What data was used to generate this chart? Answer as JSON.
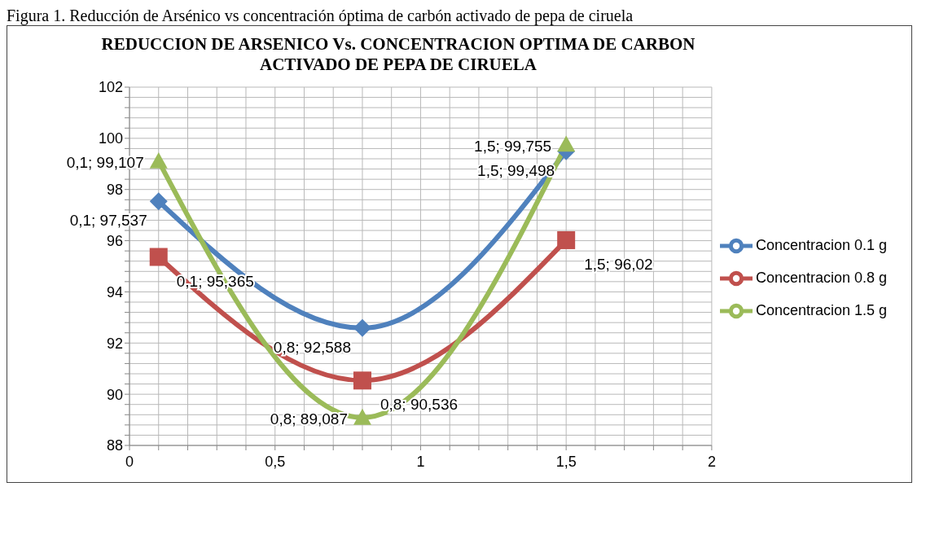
{
  "chart_data": {
    "type": "line",
    "title": "REDUCCION DE ARSENICO Vs. CONCENTRACION OPTIMA DE CARBON ACTIVADO DE PEPA DE CIRUELA",
    "annotations": [
      "Figura 1. Reducción de Arsénico vs concentración óptima de carbón activado de pepa de ciruela"
    ],
    "x": [
      0.1,
      0.8,
      1.5
    ],
    "series": [
      {
        "name": "Concentracion 0.1 g",
        "color": "#4f81bd",
        "marker": "diamond",
        "values": [
          97.537,
          92.588,
          99.498
        ],
        "value_labels": [
          "0,1; 97,537",
          "0,8; 92,588",
          "1,5; 99,498"
        ]
      },
      {
        "name": "Concentracion 0.8 g",
        "color": "#c0504d",
        "marker": "square",
        "values": [
          95.365,
          90.536,
          96.02
        ],
        "value_labels": [
          "0,1; 95,365",
          "0,8; 90,536",
          "1,5; 96,02"
        ]
      },
      {
        "name": "Concentracion 1.5 g",
        "color": "#9bbb59",
        "marker": "triangle",
        "values": [
          99.107,
          89.087,
          99.755
        ],
        "value_labels": [
          "0,1; 99,107",
          "0,8; 89,087",
          "1,5; 99,755"
        ]
      }
    ],
    "xlim": [
      0,
      2
    ],
    "xticks": [
      0,
      {
        "value": 0.1,
        "label": null
      },
      {
        "value": 0.2,
        "label": null
      },
      {
        "value": 0.3,
        "label": null
      },
      {
        "value": 0.4,
        "label": null
      },
      {
        "value": 0.5,
        "label": "0,5"
      },
      {
        "value": 0.6,
        "label": null
      },
      {
        "value": 0.7,
        "label": null
      },
      {
        "value": 0.8,
        "label": null
      },
      {
        "value": 0.9,
        "label": null
      },
      1,
      {
        "value": 1.1,
        "label": null
      },
      {
        "value": 1.2,
        "label": null
      },
      {
        "value": 1.3,
        "label": null
      },
      {
        "value": 1.4,
        "label": null
      },
      {
        "value": 1.5,
        "label": "1,5"
      },
      {
        "value": 1.6,
        "label": null
      },
      {
        "value": 1.7,
        "label": null
      },
      {
        "value": 1.8,
        "label": null
      },
      {
        "value": 1.9,
        "label": null
      },
      2
    ],
    "ylim": [
      88,
      102
    ],
    "yticks": [
      88,
      {
        "value": 88.4,
        "label": null
      },
      {
        "value": 88.8,
        "label": null
      },
      {
        "value": 89.2,
        "label": null
      },
      {
        "value": 89.6,
        "label": null
      },
      90,
      {
        "value": 90.4,
        "label": null
      },
      {
        "value": 90.8,
        "label": null
      },
      {
        "value": 91.2,
        "label": null
      },
      {
        "value": 91.6,
        "label": null
      },
      92,
      {
        "value": 92.4,
        "label": null
      },
      {
        "value": 92.8,
        "label": null
      },
      {
        "value": 93.2,
        "label": null
      },
      {
        "value": 93.6,
        "label": null
      },
      94,
      {
        "value": 94.4,
        "label": null
      },
      {
        "value": 94.8,
        "label": null
      },
      {
        "value": 95.2,
        "label": null
      },
      {
        "value": 95.6,
        "label": null
      },
      96,
      {
        "value": 96.4,
        "label": null
      },
      {
        "value": 96.8,
        "label": null
      },
      {
        "value": 97.2,
        "label": null
      },
      {
        "value": 97.6,
        "label": null
      },
      98,
      {
        "value": 98.4,
        "label": null
      },
      {
        "value": 98.8,
        "label": null
      },
      {
        "value": 99.2,
        "label": null
      },
      {
        "value": 99.6,
        "label": null
      },
      100,
      {
        "value": 100.4,
        "label": null
      },
      {
        "value": 100.8,
        "label": null
      },
      {
        "value": 101.2,
        "label": null
      },
      {
        "value": 101.6,
        "label": null
      },
      102
    ],
    "grid": true,
    "legend": "right",
    "line_style": "solid"
  }
}
